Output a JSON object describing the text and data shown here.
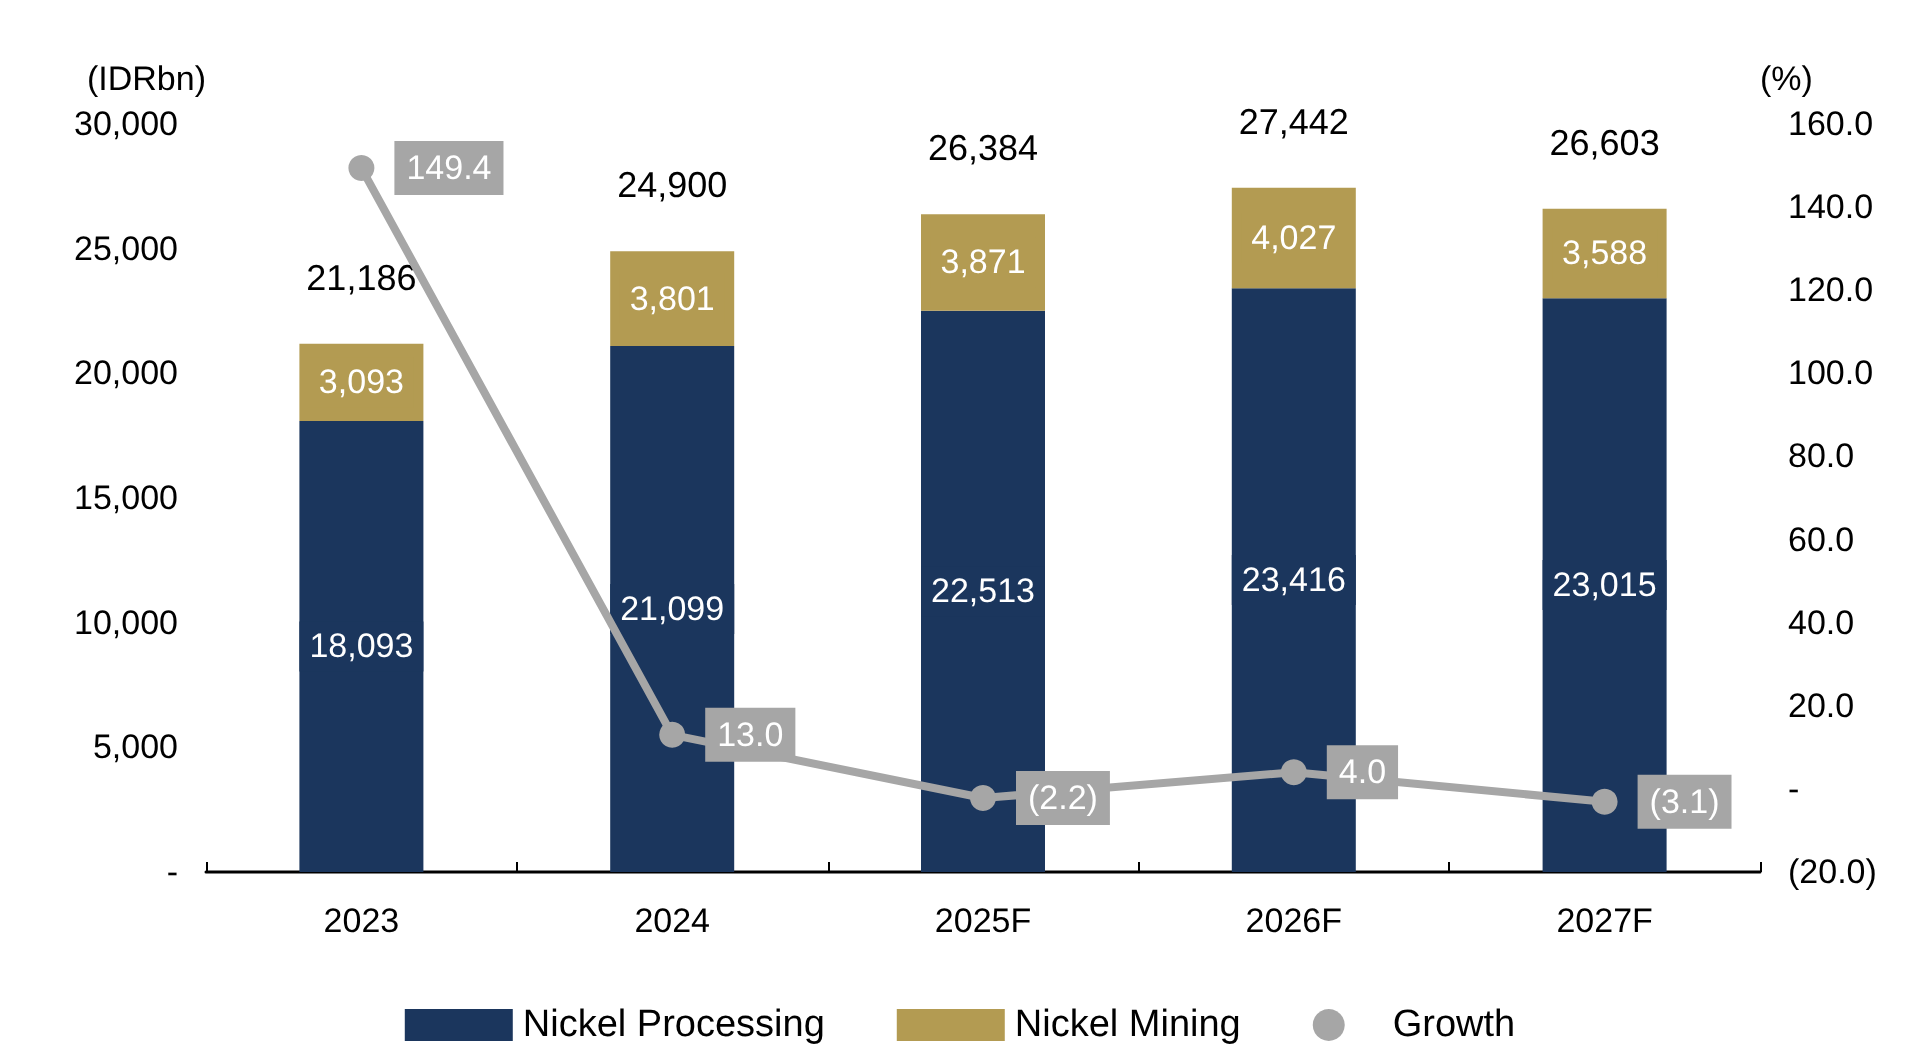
{
  "chart_data": {
    "type": "bar",
    "stacked": true,
    "ylabel": "(IDRbn)",
    "y2label": "(%)",
    "categories": [
      "2023",
      "2024",
      "2025F",
      "2026F",
      "2027F"
    ],
    "series": [
      {
        "name": "Nickel Processing",
        "color": "#1b365d",
        "values": [
          18093,
          21099,
          22513,
          23416,
          23015
        ],
        "value_labels": [
          "18,093",
          "21,099",
          "22,513",
          "23,416",
          "23,015"
        ]
      },
      {
        "name": "Nickel Mining",
        "color": "#b39b52",
        "values": [
          3093,
          3801,
          3871,
          4027,
          3588
        ],
        "value_labels": [
          "3,093",
          "3,801",
          "3,871",
          "4,027",
          "3,588"
        ]
      },
      {
        "name": "Growth",
        "type": "line",
        "axis": "y2",
        "color": "#a6a6a6",
        "marker": "circle",
        "values": [
          149.4,
          13.0,
          -2.2,
          4.0,
          -3.1
        ],
        "value_labels": [
          "149.4",
          "13.0",
          "(2.2)",
          "4.0",
          "(3.1)"
        ]
      }
    ],
    "totals": [
      "21,186",
      "24,900",
      "26,384",
      "27,442",
      "26,603"
    ],
    "ylim": [
      0,
      30000
    ],
    "yticks": [
      {
        "value": 0,
        "label": "-"
      },
      {
        "value": 5000,
        "label": "5,000"
      },
      {
        "value": 10000,
        "label": "10,000"
      },
      {
        "value": 15000,
        "label": "15,000"
      },
      {
        "value": 20000,
        "label": "20,000"
      },
      {
        "value": 25000,
        "label": "25,000"
      },
      {
        "value": 30000,
        "label": "30,000"
      }
    ],
    "y2lim": [
      -20,
      160
    ],
    "y2ticks": [
      {
        "value": -20,
        "label": "(20.0)"
      },
      {
        "value": 0,
        "label": "-"
      },
      {
        "value": 20,
        "label": "20.0"
      },
      {
        "value": 40,
        "label": "40.0"
      },
      {
        "value": 60,
        "label": "60.0"
      },
      {
        "value": 80,
        "label": "80.0"
      },
      {
        "value": 100,
        "label": "100.0"
      },
      {
        "value": 120,
        "label": "120.0"
      },
      {
        "value": 140,
        "label": "140.0"
      },
      {
        "value": 160,
        "label": "160.0"
      }
    ],
    "legend": "bottom",
    "grid": false
  }
}
